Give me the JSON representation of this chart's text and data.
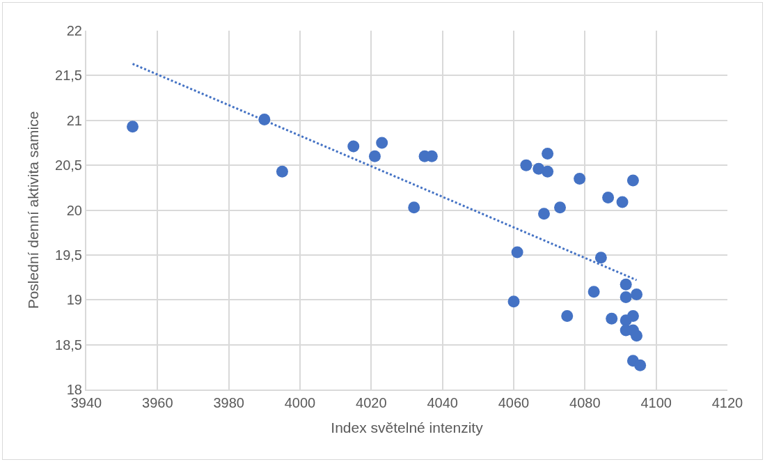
{
  "chart_data": {
    "type": "scatter",
    "xlabel": "Index světelné intenzity",
    "ylabel": "Poslední denní aktivita samice",
    "xlim": [
      3940,
      4120
    ],
    "xticks": [
      3940,
      3960,
      3980,
      4000,
      4020,
      4040,
      4060,
      4080,
      4100,
      4120
    ],
    "ylim": [
      18,
      22
    ],
    "yticks": [
      {
        "value": 18,
        "label": "18"
      },
      {
        "value": 18.5,
        "label": "18,5"
      },
      {
        "value": 19,
        "label": "19"
      },
      {
        "value": 19.5,
        "label": "19,5"
      },
      {
        "value": 20,
        "label": "20"
      },
      {
        "value": 20.5,
        "label": "20,5"
      },
      {
        "value": 21,
        "label": "21"
      },
      {
        "value": 21.5,
        "label": "21,5"
      },
      {
        "value": 22,
        "label": "22"
      }
    ],
    "grid": true,
    "marker": "circle",
    "series": [
      {
        "color": "#4472c4",
        "x": [
          3953,
          3990,
          3995,
          4015,
          4021,
          4023,
          4032,
          4035,
          4037,
          4060,
          4061,
          4063.5,
          4067,
          4069.5,
          4069.5,
          4068.5,
          4073,
          4075,
          4078.5,
          4082.5,
          4084.5,
          4086.5,
          4087.5,
          4090.5,
          4093.5,
          4091.5,
          4091.5,
          4094.5,
          4093.5,
          4091.5,
          4091.5,
          4093.5,
          4094.5,
          4093.5,
          4095.5
        ],
        "values": [
          20.93,
          21.01,
          20.43,
          20.71,
          20.6,
          20.75,
          20.03,
          20.6,
          20.6,
          18.98,
          19.53,
          20.5,
          20.46,
          20.63,
          20.43,
          19.96,
          20.03,
          18.82,
          20.35,
          19.09,
          19.47,
          20.14,
          18.79,
          20.09,
          20.33,
          19.17,
          19.03,
          19.06,
          18.82,
          18.77,
          18.66,
          18.66,
          18.6,
          18.32,
          18.27
        ]
      },
      {
        "type": "line",
        "color": "#4472c4",
        "line_style": "dotted",
        "marker": "none",
        "x": [
          3953,
          4094.5
        ],
        "values": [
          21.63,
          19.22
        ]
      }
    ]
  }
}
